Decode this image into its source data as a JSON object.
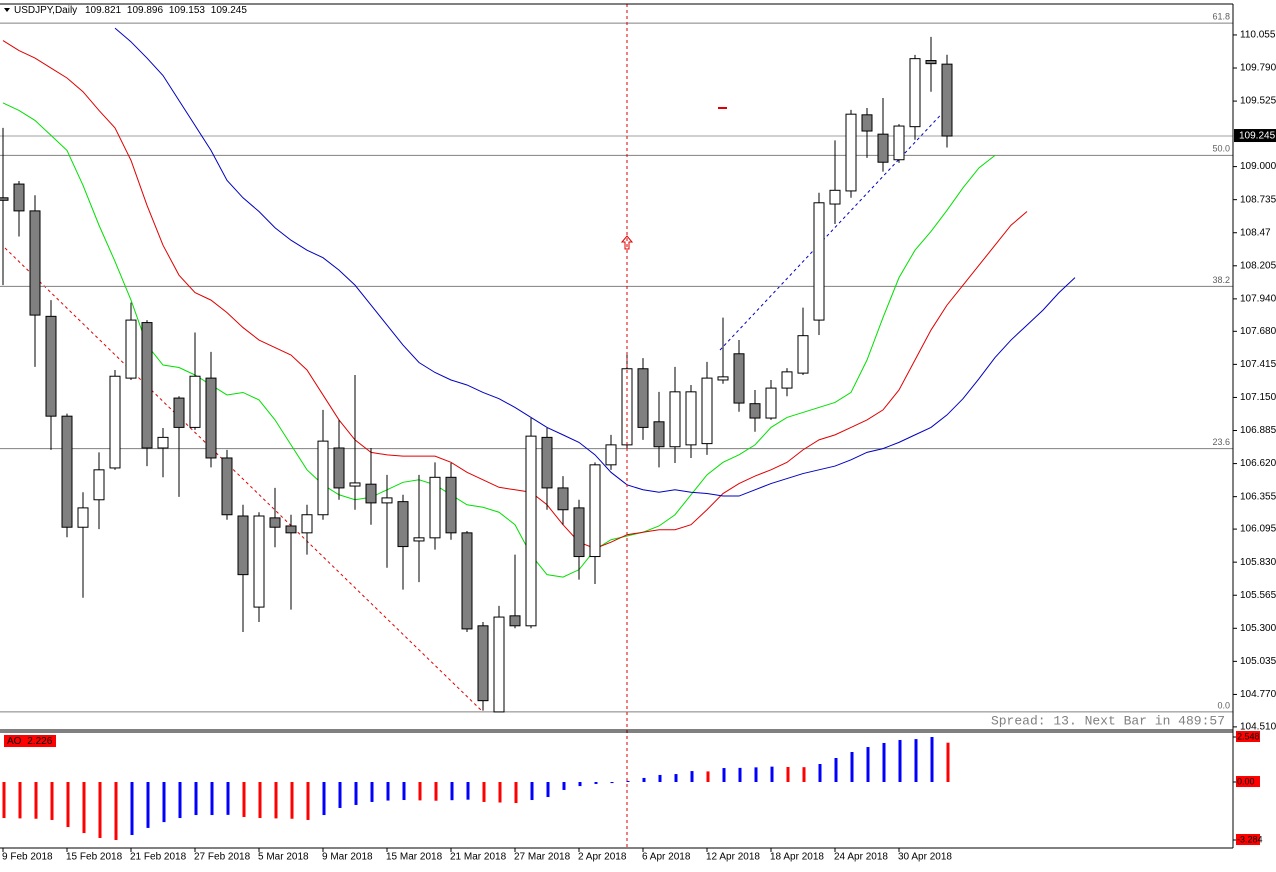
{
  "chart_data": [
    {
      "type": "candlestick",
      "title": "USDJPY,Daily",
      "header_values": [
        109.821,
        109.896,
        109.153,
        109.245
      ],
      "categories": [
        "9 Feb 2018",
        null,
        null,
        null,
        "15 Feb 2018",
        null,
        null,
        null,
        "21 Feb 2018",
        null,
        null,
        null,
        "27 Feb 2018",
        null,
        null,
        null,
        "5 Mar 2018",
        null,
        null,
        null,
        "9 Mar 2018",
        null,
        null,
        null,
        "15 Mar 2018",
        null,
        null,
        null,
        "21 Mar 2018",
        null,
        null,
        null,
        "27 Mar 2018",
        null,
        null,
        null,
        "2 Apr 2018",
        null,
        null,
        null,
        "6 Apr 2018",
        null,
        null,
        null,
        "12 Apr 2018",
        null,
        null,
        null,
        "18 Apr 2018",
        null,
        null,
        null,
        "24 Apr 2018",
        null,
        null,
        null,
        "30 Apr 2018",
        null,
        null,
        null,
        null,
        null,
        null,
        null,
        null,
        null,
        null,
        null
      ],
      "open": [
        108.75,
        108.86,
        108.645,
        107.8,
        107.0,
        106.11,
        106.33,
        106.585,
        107.305,
        107.75,
        106.745,
        107.145,
        106.91,
        107.305,
        106.665,
        106.2,
        105.47,
        106.185,
        106.12,
        106.065,
        106.21,
        106.745,
        106.44,
        106.455,
        106.305,
        106.315,
        106.0,
        106.025,
        106.51,
        106.065,
        105.32,
        104.63,
        105.4,
        105.32,
        106.83,
        106.425,
        106.265,
        105.875,
        106.61,
        106.77,
        107.38,
        106.955,
        106.755,
        106.77,
        106.78,
        107.29,
        107.5,
        107.1,
        106.985,
        107.225,
        107.345,
        107.77,
        108.7,
        108.805,
        109.415,
        109.26,
        109.055,
        109.32,
        109.85,
        109.821,
        null,
        null,
        null,
        null,
        null,
        null,
        null,
        null
      ],
      "high": [
        109.31,
        108.885,
        108.77,
        107.93,
        107.02,
        106.39,
        106.71,
        107.37,
        107.91,
        107.77,
        106.905,
        107.16,
        107.67,
        107.515,
        106.73,
        106.29,
        106.23,
        106.425,
        106.21,
        106.29,
        107.05,
        106.97,
        107.33,
        106.745,
        106.53,
        106.37,
        106.53,
        106.63,
        106.625,
        106.08,
        105.35,
        105.48,
        105.89,
        106.985,
        106.905,
        106.52,
        106.33,
        106.63,
        106.85,
        107.51,
        107.465,
        107.195,
        107.395,
        107.25,
        107.435,
        107.79,
        107.61,
        107.21,
        107.29,
        107.385,
        107.87,
        108.79,
        109.21,
        109.455,
        109.47,
        109.55,
        109.34,
        109.895,
        110.04,
        109.896,
        null,
        null,
        null,
        null,
        null,
        null,
        null,
        null
      ],
      "low": [
        108.05,
        108.44,
        107.395,
        106.73,
        106.03,
        105.545,
        106.095,
        106.57,
        107.29,
        106.6,
        106.51,
        106.353,
        106.89,
        106.59,
        106.17,
        105.27,
        105.35,
        105.95,
        105.45,
        105.89,
        106.17,
        106.33,
        106.25,
        106.13,
        105.785,
        105.61,
        105.67,
        105.93,
        106.01,
        105.27,
        104.64,
        104.63,
        105.3,
        105.3,
        106.25,
        106.13,
        105.69,
        105.655,
        106.57,
        106.745,
        106.81,
        106.59,
        106.625,
        106.665,
        106.69,
        107.26,
        107.035,
        106.875,
        106.97,
        107.16,
        107.33,
        107.65,
        108.54,
        108.75,
        109.07,
        108.96,
        109.03,
        109.215,
        109.6,
        109.153,
        null,
        null,
        null,
        null,
        null,
        null,
        null,
        null
      ],
      "close": [
        108.73,
        108.645,
        107.81,
        107.0,
        106.11,
        106.265,
        106.57,
        107.32,
        107.77,
        106.745,
        106.83,
        106.91,
        107.32,
        106.665,
        106.21,
        105.73,
        106.2,
        106.11,
        106.065,
        106.21,
        106.8,
        106.425,
        106.465,
        106.305,
        106.345,
        105.955,
        106.025,
        106.51,
        106.065,
        105.295,
        104.72,
        105.39,
        105.32,
        106.84,
        106.425,
        106.25,
        105.875,
        106.61,
        106.77,
        107.38,
        106.91,
        106.755,
        107.195,
        107.195,
        107.305,
        107.315,
        107.105,
        106.985,
        107.225,
        107.355,
        107.645,
        108.71,
        108.81,
        109.42,
        109.285,
        109.035,
        109.325,
        109.865,
        109.825,
        109.245,
        null,
        null,
        null,
        null,
        null,
        null,
        null,
        null
      ],
      "up_color": "#ffffff",
      "down_color": "#808080",
      "lines": [
        {
          "color": "#00e000",
          "values": [
            109.51,
            109.45,
            109.37,
            109.25,
            109.13,
            108.85,
            108.53,
            108.24,
            107.93,
            107.57,
            107.41,
            107.39,
            107.33,
            107.25,
            107.17,
            107.19,
            107.13,
            106.97,
            106.77,
            106.57,
            106.45,
            106.37,
            106.33,
            106.35,
            106.41,
            106.47,
            106.49,
            106.45,
            106.37,
            106.29,
            106.27,
            106.23,
            106.13,
            105.89,
            105.73,
            105.71,
            105.77,
            105.93,
            106.01,
            106.04,
            106.07,
            106.12,
            106.21,
            106.37,
            106.53,
            106.63,
            106.69,
            106.77,
            106.91,
            106.99,
            107.03,
            107.07,
            107.11,
            107.19,
            107.45,
            107.79,
            108.11,
            108.33,
            108.48,
            108.65,
            108.83,
            108.99,
            109.09,
            null,
            null,
            null,
            null,
            null
          ]
        },
        {
          "color": "#e00000",
          "values": [
            110.01,
            109.93,
            109.87,
            109.79,
            109.71,
            109.6,
            109.45,
            109.31,
            109.05,
            108.69,
            108.37,
            108.13,
            107.99,
            107.93,
            107.83,
            107.71,
            107.61,
            107.55,
            107.49,
            107.37,
            107.17,
            106.97,
            106.81,
            106.71,
            106.69,
            106.68,
            106.68,
            106.68,
            106.63,
            106.55,
            106.49,
            106.43,
            106.41,
            106.39,
            106.29,
            106.13,
            105.99,
            105.94,
            105.99,
            106.05,
            106.07,
            106.09,
            106.09,
            106.13,
            106.25,
            106.38,
            106.46,
            106.52,
            106.57,
            106.63,
            106.73,
            106.81,
            106.85,
            106.91,
            106.97,
            107.05,
            107.21,
            107.45,
            107.69,
            107.89,
            108.05,
            108.21,
            108.37,
            108.53,
            108.64,
            null,
            null,
            null
          ]
        },
        {
          "color": "#0000c0",
          "values": [
            null,
            null,
            null,
            null,
            null,
            null,
            null,
            110.11,
            110.0,
            109.87,
            109.73,
            109.53,
            109.33,
            109.13,
            108.89,
            108.75,
            108.64,
            108.51,
            108.41,
            108.33,
            108.27,
            108.17,
            108.05,
            107.89,
            107.73,
            107.57,
            107.43,
            107.35,
            107.29,
            107.25,
            107.19,
            107.14,
            107.07,
            106.99,
            106.91,
            106.85,
            106.79,
            106.69,
            106.55,
            106.45,
            106.41,
            106.39,
            106.41,
            106.39,
            106.38,
            106.36,
            106.36,
            106.41,
            106.46,
            106.5,
            106.54,
            106.57,
            106.6,
            106.65,
            106.71,
            106.74,
            106.79,
            106.85,
            106.91,
            107.01,
            107.14,
            107.3,
            107.47,
            107.61,
            107.73,
            107.85,
            107.99,
            108.11
          ]
        }
      ],
      "ylim": [
        104.485,
        110.295
      ],
      "yticks": [
        110.055,
        {
          "value": 109.79,
          "label": "109.790"
        },
        109.525,
        {
          "value": 109.0,
          "label": "109.000"
        },
        108.735,
        108.47,
        108.205,
        {
          "value": 107.94,
          "label": "107.940"
        },
        {
          "value": 107.68,
          "label": "107.680"
        },
        107.415,
        {
          "value": 107.15,
          "label": "107.150"
        },
        106.885,
        {
          "value": 106.62,
          "label": "106.620"
        },
        106.355,
        106.095,
        {
          "value": 105.83,
          "label": "105.830"
        },
        105.565,
        {
          "value": 105.3,
          "label": "105.300"
        },
        105.035,
        {
          "value": 104.77,
          "label": "104.770"
        },
        {
          "value": 104.51,
          "label": "104.510"
        }
      ],
      "fib_levels": [
        {
          "value": 110.15,
          "label": "61.8"
        },
        {
          "value": 109.09,
          "label": "50.0"
        },
        {
          "value": 108.04,
          "label": "38.2"
        },
        {
          "value": 106.74,
          "label": "23.6"
        },
        {
          "value": 104.63,
          "label": "0.0"
        }
      ],
      "status_text": "Spread: 13. Next Bar in 489:57"
    },
    {
      "type": "bar",
      "name": "AO",
      "values": [
        -2.04,
        -2.06,
        -2.08,
        -2.15,
        -2.55,
        -2.89,
        -3.17,
        -3.284,
        -3.0,
        -2.6,
        -2.27,
        -2.04,
        -1.87,
        -1.87,
        -1.86,
        -1.98,
        -2.04,
        -2.06,
        -2.08,
        -2.15,
        -1.87,
        -1.47,
        -1.3,
        -1.13,
        -1.05,
        -1.02,
        -1.04,
        -1.06,
        -1.03,
        -1.0,
        -1.13,
        -1.16,
        -1.19,
        -1.02,
        -0.85,
        -0.45,
        -0.23,
        -0.11,
        -0.06,
        0.06,
        0.23,
        0.4,
        0.45,
        0.62,
        0.6,
        0.79,
        0.8,
        0.83,
        0.87,
        0.85,
        0.84,
        1.02,
        1.36,
        1.7,
        1.98,
        2.21,
        2.38,
        2.43,
        2.548,
        2.226
      ],
      "up_color": "#0000ff",
      "down_color": "#ff0000",
      "ylim": [
        -3.68,
        2.775
      ],
      "yticks": [
        2.548,
        {
          "value": 0,
          "label": "0.00"
        },
        -3.284
      ]
    }
  ]
}
